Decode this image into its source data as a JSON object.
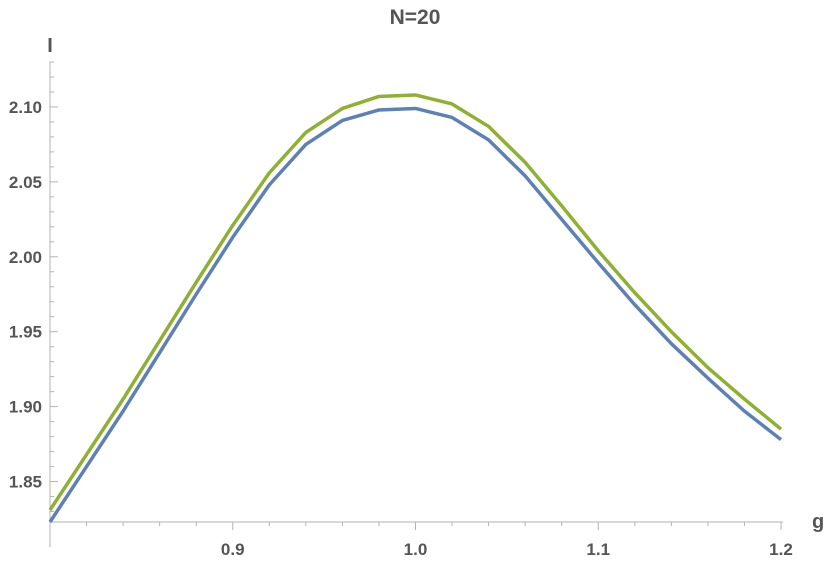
{
  "chart_data": {
    "type": "line",
    "title": "N=20",
    "xlabel": "g",
    "ylabel": "I",
    "xlim": [
      0.8,
      1.2
    ],
    "ylim": [
      1.823,
      2.13
    ],
    "x_ticks": [
      {
        "value": 0.9,
        "label": "0.9"
      },
      {
        "value": 1.0,
        "label": "1.0"
      },
      {
        "value": 1.1,
        "label": "1.1"
      },
      {
        "value": 1.2,
        "label": "1.2"
      }
    ],
    "y_ticks": [
      {
        "value": 1.85,
        "label": "1.85"
      },
      {
        "value": 1.9,
        "label": "1.90"
      },
      {
        "value": 1.95,
        "label": "1.95"
      },
      {
        "value": 2.0,
        "label": "2.00"
      },
      {
        "value": 2.05,
        "label": "2.05"
      },
      {
        "value": 2.1,
        "label": "2.10"
      }
    ],
    "grid": false,
    "x": [
      0.8,
      0.82,
      0.84,
      0.86,
      0.88,
      0.9,
      0.92,
      0.94,
      0.96,
      0.98,
      1.0,
      1.02,
      1.04,
      1.06,
      1.08,
      1.1,
      1.12,
      1.14,
      1.16,
      1.18,
      1.2
    ],
    "series": [
      {
        "color": "#5e81b5",
        "values": [
          1.823,
          1.86,
          1.897,
          1.936,
          1.975,
          2.013,
          2.048,
          2.075,
          2.091,
          2.098,
          2.099,
          2.093,
          2.078,
          2.054,
          2.025,
          1.996,
          1.968,
          1.942,
          1.919,
          1.897,
          1.878
        ]
      },
      {
        "color": "#8fb032",
        "values": [
          1.831,
          1.868,
          1.905,
          1.944,
          1.983,
          2.021,
          2.056,
          2.083,
          2.099,
          2.107,
          2.108,
          2.102,
          2.087,
          2.063,
          2.034,
          2.004,
          1.976,
          1.95,
          1.926,
          1.905,
          1.885
        ]
      }
    ]
  }
}
